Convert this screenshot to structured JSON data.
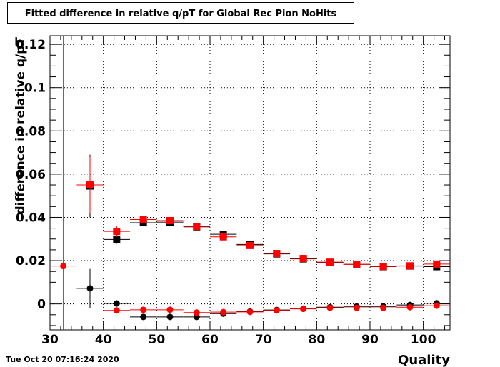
{
  "title": "Fitted difference in relative q/pT for Global Rec Pion NoHits",
  "timestamp": "Tue Oct 20 07:16:24 2020",
  "chart_data": {
    "type": "scatter",
    "title": "Fitted difference in relative q/pT for Global Rec Pion NoHits",
    "xlabel": "Quality",
    "ylabel": "difference in relative q/pT",
    "xlim": [
      30,
      105
    ],
    "ylim": [
      -0.012,
      0.124
    ],
    "xticks": [
      30,
      40,
      50,
      60,
      70,
      80,
      90,
      100
    ],
    "xtick_labels": [
      "30",
      "40",
      "50",
      "60",
      "70",
      "80",
      "90",
      "100"
    ],
    "yticks": [
      0,
      0.02,
      0.04,
      0.06,
      0.08,
      0.1,
      0.12
    ],
    "ytick_labels": [
      "0",
      "0.02",
      "0.04",
      "0.06",
      "0.08",
      "0.1",
      "0.12"
    ],
    "grid": true,
    "reference_line_x": 32.5,
    "colors": {
      "black": "#000000",
      "red": "#ff0000"
    },
    "series": [
      {
        "color": "#000000",
        "marker": "square",
        "x": [
          37.5,
          42.5,
          47.5,
          52.5,
          57.5,
          62.5,
          67.5,
          72.5,
          77.5,
          82.5,
          87.5,
          92.5,
          97.5,
          102.5
        ],
        "y": [
          0.0545,
          0.0298,
          0.0375,
          0.0378,
          0.0356,
          0.0322,
          0.0275,
          0.0231,
          0.0208,
          0.0192,
          0.0183,
          0.0172,
          0.0175,
          0.0172
        ],
        "xerr": 2.5,
        "yerr": [
          0.0145,
          0.002,
          0.0008,
          0.0008,
          0.0007,
          0.0007,
          0.0006,
          0.0005,
          0.0005,
          0.0004,
          0.0004,
          0.0004,
          0.0004,
          0.0005
        ]
      },
      {
        "color": "#ff0000",
        "marker": "square",
        "x": [
          37.5,
          42.5,
          47.5,
          52.5,
          57.5,
          62.5,
          67.5,
          72.5,
          77.5,
          82.5,
          87.5,
          92.5,
          97.5,
          102.5
        ],
        "y": [
          0.055,
          0.0335,
          0.039,
          0.0385,
          0.0358,
          0.031,
          0.027,
          0.0233,
          0.021,
          0.0193,
          0.0183,
          0.0173,
          0.0176,
          0.0184
        ],
        "xerr": 2.5,
        "yerr": [
          0.013,
          0.0025,
          0.001,
          0.0009,
          0.0008,
          0.0008,
          0.0007,
          0.0006,
          0.0005,
          0.0005,
          0.0005,
          0.0004,
          0.0004,
          0.0005
        ]
      },
      {
        "color": "#000000",
        "marker": "circle",
        "x": [
          37.5,
          42.5,
          47.5,
          52.5,
          57.5,
          62.5,
          67.5,
          72.5,
          77.5,
          82.5,
          87.5,
          92.5,
          97.5,
          102.5
        ],
        "y": [
          0.0072,
          0.0002,
          -0.006,
          -0.006,
          -0.006,
          -0.0045,
          -0.0035,
          -0.0028,
          -0.0022,
          -0.0015,
          -0.0012,
          -0.0012,
          -0.0005,
          0.0003
        ],
        "xerr": 2.5,
        "yerr": [
          0.009,
          0.0015,
          0.0008,
          0.0007,
          0.0007,
          0.0006,
          0.0005,
          0.0005,
          0.0004,
          0.0004,
          0.0004,
          0.0004,
          0.0004,
          0.0005
        ]
      },
      {
        "color": "#ff0000",
        "marker": "circle",
        "x": [
          32.5,
          42.5,
          47.5,
          52.5,
          57.5,
          62.5,
          67.5,
          72.5,
          77.5,
          82.5,
          87.5,
          92.5,
          97.5,
          102.5
        ],
        "y": [
          0.0175,
          -0.003,
          -0.0027,
          -0.0027,
          -0.004,
          -0.0038,
          -0.0037,
          -0.003,
          -0.0023,
          -0.0018,
          -0.0018,
          -0.0018,
          -0.0015,
          -0.0008
        ],
        "xerr": 2.5,
        "yerr": [
          0,
          0.001,
          0.0007,
          0.0007,
          0.0006,
          0.0006,
          0.0005,
          0.0005,
          0.0004,
          0.0004,
          0.0004,
          0.0004,
          0.0004,
          0.0005
        ]
      }
    ]
  }
}
